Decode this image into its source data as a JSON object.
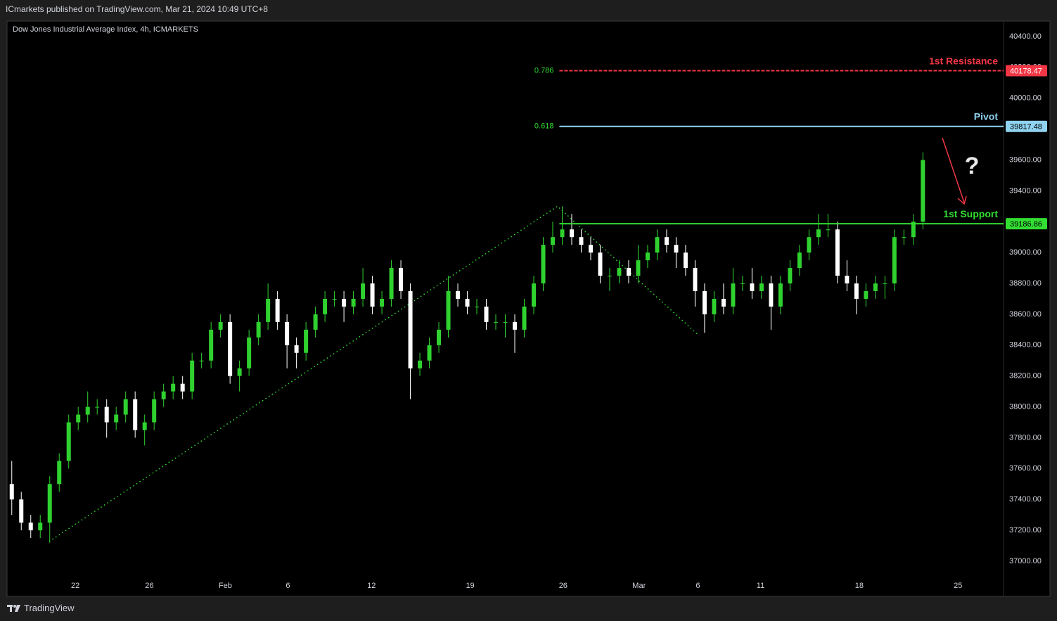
{
  "header": {
    "published": "ICmarkets published on TradingView.com, Mar 21, 2024 10:49 UTC+8"
  },
  "footer": {
    "brand": "TradingView"
  },
  "chart_data": {
    "type": "candlestick",
    "title": "Dow Jones Industrial Average Index, 4h, ICMARKETS",
    "up_color": "#2fd12f",
    "down_color": "#ffffff",
    "x": [
      0.25,
      0.75,
      1.25,
      1.75,
      2.25,
      2.75,
      3.25,
      3.75,
      4.25,
      4.75,
      5.25,
      5.75,
      6.25,
      6.75,
      7.25,
      7.75,
      8.25,
      8.75,
      9.25,
      9.75,
      10.25,
      10.75,
      11.25,
      11.75,
      12.25,
      12.75,
      13.25,
      13.75,
      14.25,
      14.75,
      15.25,
      15.75,
      16.25,
      16.75,
      17.25,
      17.75,
      18.25,
      18.75,
      19.25,
      19.75,
      20.25,
      20.75,
      21.25,
      21.75,
      22.25,
      22.75,
      23.25,
      23.75,
      24.25,
      24.75,
      25.25,
      25.75,
      26.25,
      26.75,
      27.25,
      27.75,
      28.25,
      28.75,
      29.25,
      29.75,
      30.25,
      30.75,
      31.25,
      31.75,
      32.25,
      32.75,
      33.25,
      33.75,
      34.25,
      34.75,
      35.25,
      35.75,
      36.25,
      36.75,
      37.25,
      37.75,
      38.25,
      38.75,
      39.25,
      39.75,
      40.25,
      40.75,
      41.25,
      41.75,
      42.25,
      42.75,
      43.25,
      43.75,
      44.25,
      44.75,
      45.25,
      45.75,
      46.25,
      46.75,
      47.25,
      47.75,
      48.25
    ],
    "open": [
      37500,
      37400,
      37250,
      37200,
      37250,
      37500,
      37650,
      37900,
      37950,
      38000,
      38000,
      37900,
      37950,
      38050,
      37850,
      37900,
      38050,
      38100,
      38150,
      38100,
      38300,
      38300,
      38500,
      38550,
      38200,
      38250,
      38450,
      38550,
      38700,
      38550,
      38400,
      38350,
      38500,
      38600,
      38700,
      38700,
      38650,
      38700,
      38800,
      38650,
      38700,
      38900,
      38750,
      38250,
      38300,
      38400,
      38500,
      38750,
      38700,
      38650,
      38650,
      38550,
      38550,
      38550,
      38500,
      38650,
      38800,
      39050,
      39100,
      39150,
      39100,
      39050,
      39000,
      38850,
      38850,
      38900,
      38850,
      38950,
      39000,
      39100,
      39050,
      39000,
      38900,
      38750,
      38600,
      38700,
      38650,
      38800,
      38800,
      38750,
      38800,
      38650,
      38800,
      38900,
      39000,
      39100,
      39150,
      39150,
      38850,
      38800,
      38700,
      38750,
      38800,
      38800,
      39100,
      39100,
      39200
    ],
    "high": [
      37650,
      37450,
      37300,
      37300,
      37550,
      37700,
      37950,
      38000,
      38100,
      38050,
      38050,
      38000,
      38100,
      38100,
      37950,
      38100,
      38150,
      38200,
      38200,
      38350,
      38350,
      38550,
      38600,
      38600,
      38300,
      38500,
      38600,
      38800,
      38750,
      38600,
      38450,
      38550,
      38650,
      38750,
      38750,
      38750,
      38750,
      38900,
      38850,
      38750,
      38950,
      38950,
      38800,
      38350,
      38450,
      38550,
      38850,
      38800,
      38750,
      38700,
      38700,
      38600,
      38600,
      38600,
      38700,
      38850,
      39100,
      39200,
      39300,
      39250,
      39150,
      39100,
      39050,
      38900,
      38950,
      38950,
      39050,
      39050,
      39150,
      39150,
      39100,
      39050,
      38950,
      38800,
      38750,
      38800,
      38900,
      38850,
      38900,
      38850,
      38850,
      38850,
      38950,
      39050,
      39150,
      39250,
      39250,
      39200,
      38950,
      38850,
      38800,
      38850,
      38850,
      39150,
      39150,
      39250,
      39650
    ],
    "low": [
      37300,
      37200,
      37150,
      37150,
      37120,
      37450,
      37600,
      37850,
      37900,
      37950,
      37800,
      37850,
      37900,
      37800,
      37750,
      37850,
      38000,
      38050,
      38050,
      38050,
      38250,
      38250,
      38450,
      38150,
      38100,
      38200,
      38400,
      38500,
      38500,
      38250,
      38250,
      38300,
      38450,
      38550,
      38650,
      38550,
      38600,
      38650,
      38600,
      38600,
      38650,
      38700,
      38050,
      38200,
      38250,
      38350,
      38450,
      38650,
      38600,
      38600,
      38500,
      38500,
      38450,
      38350,
      38450,
      38600,
      38750,
      39000,
      39050,
      39050,
      39000,
      38950,
      38800,
      38750,
      38800,
      38800,
      38800,
      38900,
      38950,
      39000,
      38900,
      38850,
      38650,
      38480,
      38550,
      38600,
      38600,
      38750,
      38700,
      38700,
      38500,
      38600,
      38750,
      38850,
      38950,
      39050,
      39100,
      38800,
      38750,
      38600,
      38650,
      38700,
      38700,
      38750,
      39050,
      39050,
      39150
    ],
    "close": [
      37400,
      37250,
      37200,
      37250,
      37500,
      37650,
      37900,
      37950,
      38000,
      38000,
      37900,
      37950,
      38050,
      37850,
      37900,
      38050,
      38100,
      38150,
      38100,
      38300,
      38300,
      38500,
      38550,
      38200,
      38250,
      38450,
      38550,
      38700,
      38550,
      38400,
      38350,
      38500,
      38600,
      38700,
      38700,
      38650,
      38700,
      38800,
      38650,
      38700,
      38900,
      38750,
      38250,
      38300,
      38400,
      38500,
      38750,
      38700,
      38650,
      38650,
      38550,
      38550,
      38550,
      38500,
      38650,
      38800,
      39050,
      39100,
      39150,
      39100,
      39050,
      39000,
      38850,
      38850,
      38900,
      38850,
      38950,
      39000,
      39100,
      39050,
      39000,
      38900,
      38750,
      38600,
      38700,
      38650,
      38800,
      38800,
      38750,
      38800,
      38650,
      38800,
      38900,
      39000,
      39100,
      39150,
      39150,
      38850,
      38800,
      38700,
      38750,
      38800,
      38800,
      39100,
      39100,
      39200,
      39600
    ],
    "xlim": [
      0,
      52.5
    ],
    "ylim": [
      36772,
      40500
    ],
    "xticks": [
      {
        "value": 3.6,
        "label": "22"
      },
      {
        "value": 7.5,
        "label": "26"
      },
      {
        "value": 11.5,
        "label": "Feb"
      },
      {
        "value": 14.8,
        "label": "6"
      },
      {
        "value": 19.2,
        "label": "12"
      },
      {
        "value": 24.4,
        "label": "19"
      },
      {
        "value": 29.3,
        "label": "26"
      },
      {
        "value": 33.3,
        "label": "Mar"
      },
      {
        "value": 36.4,
        "label": "6"
      },
      {
        "value": 39.7,
        "label": "11"
      },
      {
        "value": 44.9,
        "label": "18"
      },
      {
        "value": 50.1,
        "label": "25"
      }
    ],
    "yticks": [
      {
        "value": 37000,
        "label": "37000.00"
      },
      {
        "value": 37200,
        "label": "37200.00"
      },
      {
        "value": 37400,
        "label": "37400.00"
      },
      {
        "value": 37600,
        "label": "37600.00"
      },
      {
        "value": 37800,
        "label": "37800.00"
      },
      {
        "value": 38000,
        "label": "38000.00"
      },
      {
        "value": 38200,
        "label": "38200.00"
      },
      {
        "value": 38400,
        "label": "38400.00"
      },
      {
        "value": 38600,
        "label": "38600.00"
      },
      {
        "value": 38800,
        "label": "38800.00"
      },
      {
        "value": 39000,
        "label": "39000.00"
      },
      {
        "value": 39200,
        "label": "39200.00"
      },
      {
        "value": 39400,
        "label": "39400.00"
      },
      {
        "value": 39600,
        "label": "39600.00"
      },
      {
        "value": 39800,
        "label": "39800.00"
      },
      {
        "value": 40000,
        "label": "40000.00"
      },
      {
        "value": 40200,
        "label": "40200.00"
      },
      {
        "value": 40400,
        "label": "40400.00"
      }
    ],
    "levels": [
      {
        "name": "1st Resistance",
        "value": 40178.47,
        "fib": 0.786,
        "color": "#f23645",
        "text_color": "#ffffff",
        "dashed": true,
        "from_x": 29.1
      },
      {
        "name": "Pivot",
        "value": 39817.48,
        "fib": 0.618,
        "color": "#8fd3f0",
        "text_color": "#000000",
        "dashed": false,
        "from_x": 29.1
      },
      {
        "name": "1st Support",
        "value": 39186.86,
        "color": "#33dd33",
        "text_color": "#000000",
        "dashed": false,
        "from_x": 29.1
      }
    ],
    "fib_color": "#33dd33",
    "trendline": {
      "x": [
        2.22,
        29.0,
        36.4
      ],
      "y": [
        37128,
        39300,
        38468
      ],
      "color": "#33dd33"
    },
    "annotation": {
      "text": "?"
    }
  }
}
